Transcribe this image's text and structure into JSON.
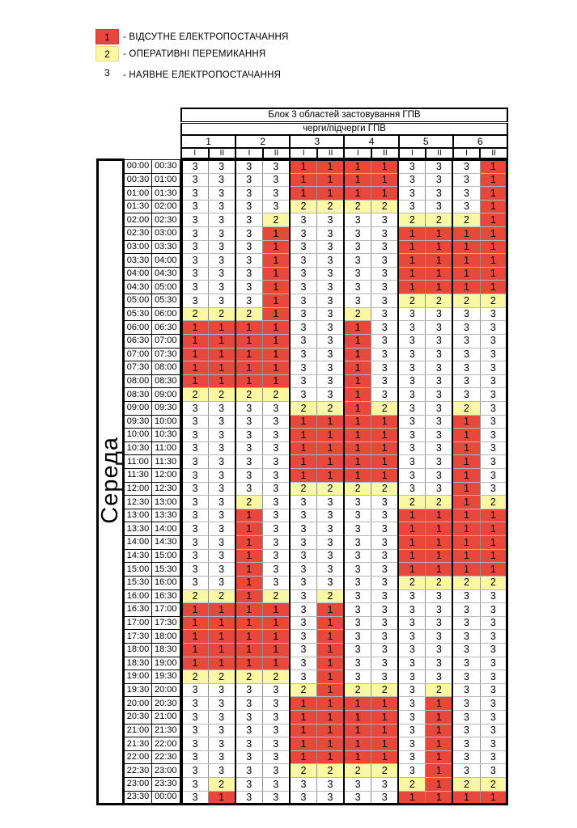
{
  "legend": {
    "items": [
      {
        "code": "1",
        "label": "- ВІДСУТНЕ ЕЛЕКТРОПОСТАЧАННЯ",
        "color": "#e8473c",
        "boxed": true
      },
      {
        "code": "2",
        "label": "- ОПЕРАТИВНІ ПЕРЕМИКАННЯ",
        "color": "#fbf8a4",
        "boxed": true
      },
      {
        "code": "3",
        "label": "- НАЯВНЕ ЕЛЕКТРОПОСТАЧАННЯ",
        "color": "",
        "boxed": false
      }
    ]
  },
  "header": {
    "title": "Блок 3 областей застовування ГПВ",
    "subtitle": "черги/підчерги ГПВ",
    "queues": [
      "1",
      "2",
      "3",
      "4",
      "5",
      "6"
    ],
    "subqueues": [
      "I",
      "II"
    ]
  },
  "day_label": "Середа",
  "status_colors": {
    "1": "#e8473c",
    "2": "#fbf8a4",
    "3": "#ffffff"
  },
  "rows": [
    {
      "start": "00:00",
      "end": "00:30",
      "values": [
        3,
        3,
        3,
        3,
        1,
        1,
        1,
        1,
        3,
        3,
        3,
        1
      ]
    },
    {
      "start": "00:30",
      "end": "01:00",
      "values": [
        3,
        3,
        3,
        3,
        1,
        1,
        1,
        1,
        3,
        3,
        3,
        1
      ]
    },
    {
      "start": "01:00",
      "end": "01:30",
      "values": [
        3,
        3,
        3,
        3,
        1,
        1,
        1,
        1,
        3,
        3,
        3,
        1
      ]
    },
    {
      "start": "01:30",
      "end": "02:00",
      "values": [
        3,
        3,
        3,
        3,
        2,
        2,
        2,
        2,
        3,
        3,
        3,
        1
      ]
    },
    {
      "start": "02:00",
      "end": "02:30",
      "values": [
        3,
        3,
        3,
        2,
        3,
        3,
        3,
        3,
        2,
        2,
        2,
        1
      ]
    },
    {
      "start": "02:30",
      "end": "03:00",
      "values": [
        3,
        3,
        3,
        1,
        3,
        3,
        3,
        3,
        1,
        1,
        1,
        1
      ]
    },
    {
      "start": "03:00",
      "end": "03:30",
      "values": [
        3,
        3,
        3,
        1,
        3,
        3,
        3,
        3,
        1,
        1,
        1,
        1
      ]
    },
    {
      "start": "03:30",
      "end": "04:00",
      "values": [
        3,
        3,
        3,
        1,
        3,
        3,
        3,
        3,
        1,
        1,
        1,
        1
      ]
    },
    {
      "start": "04:00",
      "end": "04:30",
      "values": [
        3,
        3,
        3,
        1,
        3,
        3,
        3,
        3,
        1,
        1,
        1,
        1
      ]
    },
    {
      "start": "04:30",
      "end": "05:00",
      "values": [
        3,
        3,
        3,
        1,
        3,
        3,
        3,
        3,
        1,
        1,
        1,
        1
      ]
    },
    {
      "start": "05:00",
      "end": "05:30",
      "values": [
        3,
        3,
        3,
        1,
        3,
        3,
        3,
        3,
        2,
        2,
        2,
        2
      ]
    },
    {
      "start": "05:30",
      "end": "06:00",
      "values": [
        2,
        2,
        2,
        1,
        3,
        3,
        2,
        3,
        3,
        3,
        3,
        3
      ]
    },
    {
      "start": "06:00",
      "end": "06:30",
      "values": [
        1,
        1,
        1,
        1,
        3,
        3,
        1,
        3,
        3,
        3,
        3,
        3
      ]
    },
    {
      "start": "06:30",
      "end": "07:00",
      "values": [
        1,
        1,
        1,
        1,
        3,
        3,
        1,
        3,
        3,
        3,
        3,
        3
      ]
    },
    {
      "start": "07:00",
      "end": "07:30",
      "values": [
        1,
        1,
        1,
        1,
        3,
        3,
        1,
        3,
        3,
        3,
        3,
        3
      ]
    },
    {
      "start": "07:30",
      "end": "08:00",
      "values": [
        1,
        1,
        1,
        1,
        3,
        3,
        1,
        3,
        3,
        3,
        3,
        3
      ]
    },
    {
      "start": "08:00",
      "end": "08:30",
      "values": [
        1,
        1,
        1,
        1,
        3,
        3,
        1,
        3,
        3,
        3,
        3,
        3
      ]
    },
    {
      "start": "08:30",
      "end": "09:00",
      "values": [
        2,
        2,
        2,
        2,
        3,
        3,
        1,
        3,
        3,
        3,
        3,
        3
      ]
    },
    {
      "start": "09:00",
      "end": "09:30",
      "values": [
        3,
        3,
        3,
        3,
        2,
        2,
        1,
        2,
        3,
        3,
        2,
        3
      ]
    },
    {
      "start": "09:30",
      "end": "10:00",
      "values": [
        3,
        3,
        3,
        3,
        1,
        1,
        1,
        1,
        3,
        3,
        1,
        3
      ]
    },
    {
      "start": "10:00",
      "end": "10:30",
      "values": [
        3,
        3,
        3,
        3,
        1,
        1,
        1,
        1,
        3,
        3,
        1,
        3
      ]
    },
    {
      "start": "10:30",
      "end": "11:00",
      "values": [
        3,
        3,
        3,
        3,
        1,
        1,
        1,
        1,
        3,
        3,
        1,
        3
      ]
    },
    {
      "start": "11:00",
      "end": "11:30",
      "values": [
        3,
        3,
        3,
        3,
        1,
        1,
        1,
        1,
        3,
        3,
        1,
        3
      ]
    },
    {
      "start": "11:30",
      "end": "12:00",
      "values": [
        3,
        3,
        3,
        3,
        1,
        1,
        1,
        1,
        3,
        3,
        1,
        3
      ]
    },
    {
      "start": "12:00",
      "end": "12:30",
      "values": [
        3,
        3,
        3,
        3,
        2,
        2,
        2,
        2,
        3,
        3,
        1,
        3
      ]
    },
    {
      "start": "12:30",
      "end": "13:00",
      "values": [
        3,
        3,
        2,
        3,
        3,
        3,
        3,
        3,
        2,
        2,
        1,
        2
      ]
    },
    {
      "start": "13:00",
      "end": "13:30",
      "values": [
        3,
        3,
        1,
        3,
        3,
        3,
        3,
        3,
        1,
        1,
        1,
        1
      ]
    },
    {
      "start": "13:30",
      "end": "14:00",
      "values": [
        3,
        3,
        1,
        3,
        3,
        3,
        3,
        3,
        1,
        1,
        1,
        1
      ]
    },
    {
      "start": "14:00",
      "end": "14:30",
      "values": [
        3,
        3,
        1,
        3,
        3,
        3,
        3,
        3,
        1,
        1,
        1,
        1
      ]
    },
    {
      "start": "14:30",
      "end": "15:00",
      "values": [
        3,
        3,
        1,
        3,
        3,
        3,
        3,
        3,
        1,
        1,
        1,
        1
      ]
    },
    {
      "start": "15:00",
      "end": "15:30",
      "values": [
        3,
        3,
        1,
        3,
        3,
        3,
        3,
        3,
        1,
        1,
        1,
        1
      ]
    },
    {
      "start": "15:30",
      "end": "16:00",
      "values": [
        3,
        3,
        1,
        3,
        3,
        3,
        3,
        3,
        2,
        2,
        2,
        2
      ]
    },
    {
      "start": "16:00",
      "end": "16:30",
      "values": [
        2,
        2,
        1,
        2,
        3,
        2,
        3,
        3,
        3,
        3,
        3,
        3
      ]
    },
    {
      "start": "16:30",
      "end": "17:00",
      "values": [
        1,
        1,
        1,
        1,
        3,
        1,
        3,
        3,
        3,
        3,
        3,
        3
      ]
    },
    {
      "start": "17:00",
      "end": "17:30",
      "values": [
        1,
        1,
        1,
        1,
        3,
        1,
        3,
        3,
        3,
        3,
        3,
        3
      ]
    },
    {
      "start": "17:30",
      "end": "18:00",
      "values": [
        1,
        1,
        1,
        1,
        3,
        1,
        3,
        3,
        3,
        3,
        3,
        3
      ]
    },
    {
      "start": "18:00",
      "end": "18:30",
      "values": [
        1,
        1,
        1,
        1,
        3,
        1,
        3,
        3,
        3,
        3,
        3,
        3
      ]
    },
    {
      "start": "18:30",
      "end": "19:00",
      "values": [
        1,
        1,
        1,
        1,
        3,
        1,
        3,
        3,
        3,
        3,
        3,
        3
      ]
    },
    {
      "start": "19:00",
      "end": "19:30",
      "values": [
        2,
        2,
        2,
        2,
        3,
        1,
        3,
        3,
        3,
        3,
        3,
        3
      ]
    },
    {
      "start": "19:30",
      "end": "20:00",
      "values": [
        3,
        3,
        3,
        3,
        2,
        1,
        2,
        2,
        3,
        2,
        3,
        3
      ]
    },
    {
      "start": "20:00",
      "end": "20:30",
      "values": [
        3,
        3,
        3,
        3,
        1,
        1,
        1,
        1,
        3,
        1,
        3,
        3
      ]
    },
    {
      "start": "20:30",
      "end": "21:00",
      "values": [
        3,
        3,
        3,
        3,
        1,
        1,
        1,
        1,
        3,
        1,
        3,
        3
      ]
    },
    {
      "start": "21:00",
      "end": "21:30",
      "values": [
        3,
        3,
        3,
        3,
        1,
        1,
        1,
        1,
        3,
        1,
        3,
        3
      ]
    },
    {
      "start": "21:30",
      "end": "22:00",
      "values": [
        3,
        3,
        3,
        3,
        1,
        1,
        1,
        1,
        3,
        1,
        3,
        3
      ]
    },
    {
      "start": "22:00",
      "end": "22:30",
      "values": [
        3,
        3,
        3,
        3,
        1,
        1,
        1,
        1,
        3,
        1,
        3,
        3
      ]
    },
    {
      "start": "22:30",
      "end": "23:00",
      "values": [
        3,
        3,
        3,
        3,
        2,
        2,
        2,
        2,
        3,
        1,
        3,
        3
      ]
    },
    {
      "start": "23:00",
      "end": "23:30",
      "values": [
        3,
        2,
        3,
        3,
        3,
        3,
        3,
        3,
        2,
        1,
        2,
        2
      ]
    },
    {
      "start": "23:30",
      "end": "00:00",
      "values": [
        3,
        1,
        3,
        3,
        3,
        3,
        3,
        3,
        1,
        1,
        1,
        1
      ]
    }
  ]
}
